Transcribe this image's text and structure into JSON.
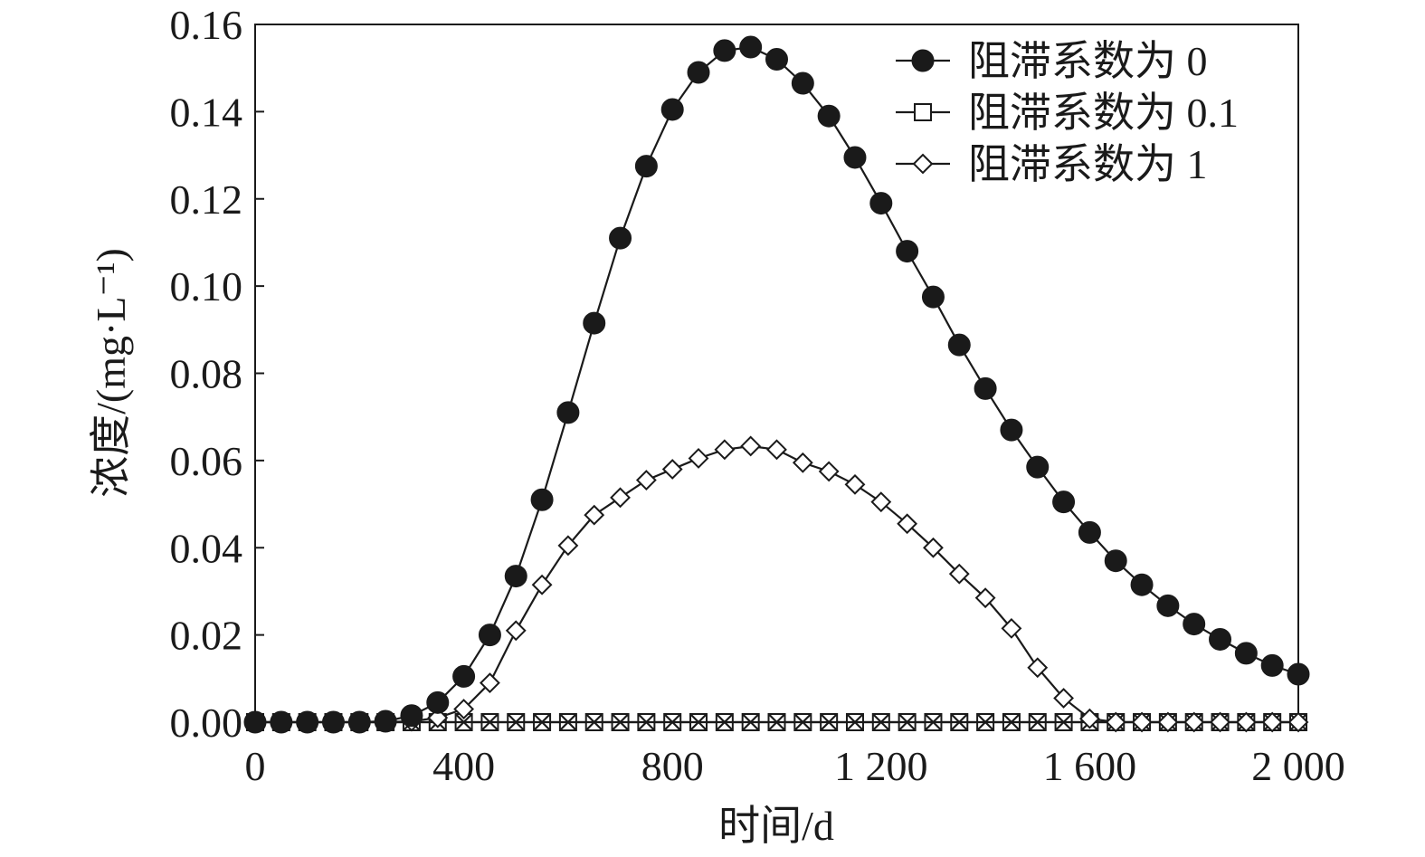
{
  "chart_data": {
    "type": "line",
    "xlabel": "时间/d",
    "ylabel": "浓度/(mg·L⁻¹)",
    "xlim": [
      0,
      2000
    ],
    "ylim": [
      0,
      0.16
    ],
    "xticks": [
      {
        "value": 0,
        "label": "0"
      },
      {
        "value": 400,
        "label": "400"
      },
      {
        "value": 800,
        "label": "800"
      },
      {
        "value": 1200,
        "label": "1 200"
      },
      {
        "value": 1600,
        "label": "1 600"
      },
      {
        "value": 2000,
        "label": "2 000"
      }
    ],
    "yticks": [
      {
        "value": 0,
        "label": "0.00"
      },
      {
        "value": 0.02,
        "label": "0.02"
      },
      {
        "value": 0.04,
        "label": "0.04"
      },
      {
        "value": 0.06,
        "label": "0.06"
      },
      {
        "value": 0.08,
        "label": "0.08"
      },
      {
        "value": 0.1,
        "label": "0.10"
      },
      {
        "value": 0.12,
        "label": "0.12"
      },
      {
        "value": 0.14,
        "label": "0.14"
      },
      {
        "value": 0.16,
        "label": "0.16"
      }
    ],
    "grid": false,
    "legend_position": "top-right",
    "x": [
      0,
      50,
      100,
      150,
      200,
      250,
      300,
      350,
      400,
      450,
      500,
      550,
      600,
      650,
      700,
      750,
      800,
      850,
      900,
      950,
      1000,
      1050,
      1100,
      1150,
      1200,
      1250,
      1300,
      1350,
      1400,
      1450,
      1500,
      1550,
      1600,
      1650,
      1700,
      1750,
      1800,
      1850,
      1900,
      1950,
      2000
    ],
    "series": [
      {
        "name": "阻滞系数为 0",
        "marker": "filled-circle",
        "color": "#1a1a1a",
        "values": [
          0,
          0,
          0,
          0,
          0,
          0.0002,
          0.0015,
          0.0045,
          0.0105,
          0.02,
          0.0335,
          0.051,
          0.071,
          0.0915,
          0.111,
          0.1275,
          0.1405,
          0.149,
          0.154,
          0.1548,
          0.152,
          0.1465,
          0.139,
          0.1295,
          0.119,
          0.108,
          0.0975,
          0.0865,
          0.0765,
          0.067,
          0.0585,
          0.0505,
          0.0435,
          0.037,
          0.0315,
          0.0267,
          0.0225,
          0.019,
          0.0158,
          0.013,
          0.011
        ]
      },
      {
        "name": "阻滞系数为 0.1",
        "marker": "open-square",
        "color": "#1a1a1a",
        "values": [
          0,
          0,
          0,
          0,
          0,
          0,
          0,
          0,
          0,
          0,
          0,
          0,
          0,
          0,
          0,
          0,
          0,
          0,
          0,
          0,
          0,
          0,
          0,
          0,
          0,
          0,
          0,
          0,
          0,
          0,
          0,
          0,
          0,
          0,
          0,
          0,
          0,
          0,
          0,
          0,
          0
        ]
      },
      {
        "name": "阻滞系数为 1",
        "marker": "open-diamond",
        "color": "#1a1a1a",
        "values": [
          0,
          0,
          0,
          0,
          0,
          0,
          0.0002,
          0.001,
          0.003,
          0.009,
          0.021,
          0.0315,
          0.0405,
          0.0475,
          0.0515,
          0.0555,
          0.058,
          0.0605,
          0.0625,
          0.0633,
          0.0625,
          0.0595,
          0.0575,
          0.0545,
          0.0505,
          0.0455,
          0.04,
          0.034,
          0.0285,
          0.0215,
          0.0125,
          0.0055,
          0.0008,
          0,
          0,
          0,
          0,
          0,
          0,
          0,
          0
        ]
      },
      {
        "name": "",
        "marker": "cross",
        "color": "#1a1a1a",
        "values": [
          0,
          0,
          0,
          0,
          0,
          0,
          0,
          0,
          0,
          0,
          0,
          0,
          0,
          0,
          0,
          0,
          0,
          0,
          0,
          0,
          0,
          0,
          0,
          0,
          0,
          0,
          0,
          0,
          0,
          0,
          0,
          0,
          0,
          0,
          0,
          0,
          0,
          0,
          0,
          0,
          0
        ]
      }
    ]
  }
}
